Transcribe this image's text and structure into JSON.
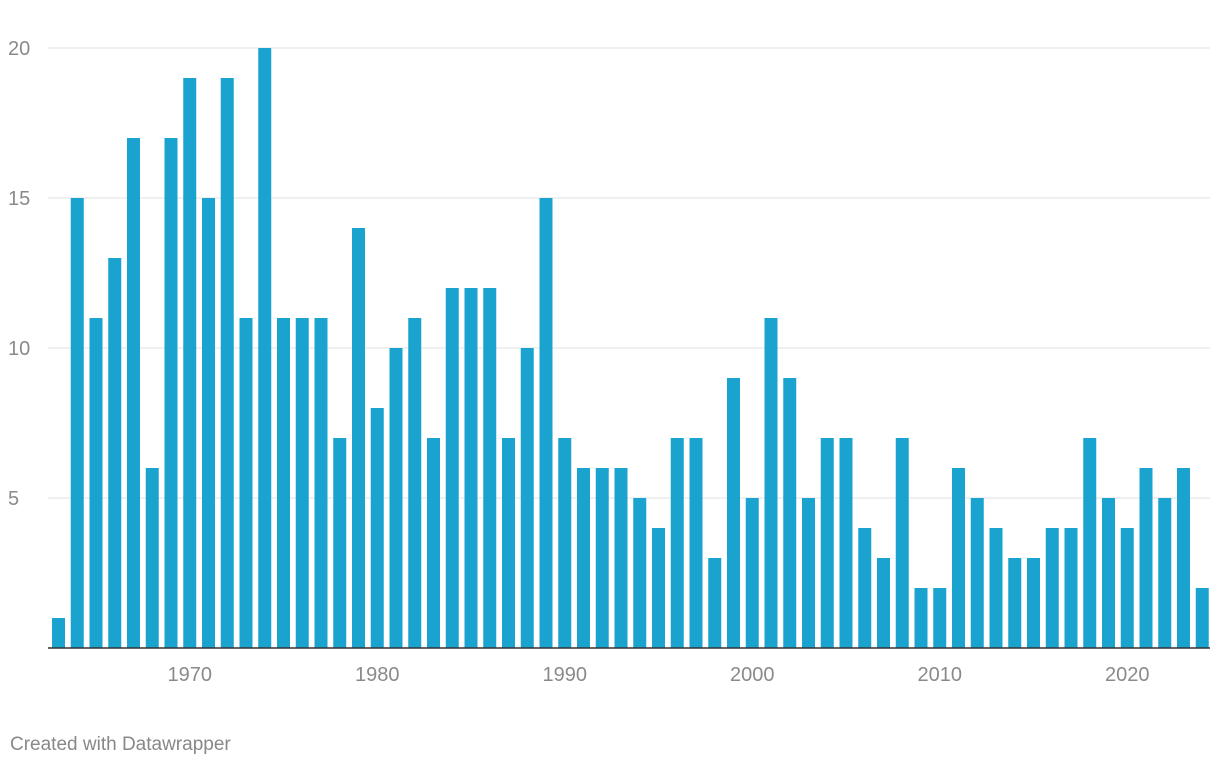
{
  "chart_data": {
    "type": "bar",
    "title": "",
    "xlabel": "",
    "ylabel": "",
    "x": [
      1963,
      1964,
      1965,
      1966,
      1967,
      1968,
      1969,
      1970,
      1971,
      1972,
      1973,
      1974,
      1975,
      1976,
      1977,
      1978,
      1979,
      1980,
      1981,
      1982,
      1983,
      1984,
      1985,
      1986,
      1987,
      1988,
      1989,
      1990,
      1991,
      1992,
      1993,
      1994,
      1995,
      1996,
      1997,
      1998,
      1999,
      2000,
      2001,
      2002,
      2003,
      2004,
      2005,
      2006,
      2007,
      2008,
      2009,
      2010,
      2011,
      2012,
      2013,
      2014,
      2015,
      2016,
      2017,
      2018,
      2019,
      2020,
      2021,
      2022,
      2023,
      2024
    ],
    "values": [
      1,
      15,
      11,
      13,
      17,
      6,
      17,
      19,
      15,
      19,
      11,
      20,
      11,
      11,
      11,
      7,
      14,
      8,
      10,
      11,
      7,
      12,
      12,
      12,
      7,
      10,
      15,
      7,
      6,
      6,
      6,
      5,
      4,
      7,
      7,
      3,
      9,
      5,
      11,
      9,
      5,
      7,
      7,
      4,
      3,
      7,
      2,
      2,
      6,
      5,
      4,
      3,
      3,
      4,
      4,
      7,
      5,
      4,
      6,
      5,
      6,
      2
    ],
    "ylim": [
      0,
      20
    ],
    "y_ticks": [
      5,
      10,
      15,
      20
    ],
    "x_ticks": [
      1970,
      1980,
      1990,
      2000,
      2010,
      2020
    ],
    "bar_color": "#1ba3d0",
    "grid": true
  },
  "footer": {
    "credit": "Created with Datawrapper"
  },
  "colors": {
    "grid": "#e2e2e2",
    "axis": "#333333",
    "tick_text": "#8a8a8a"
  }
}
